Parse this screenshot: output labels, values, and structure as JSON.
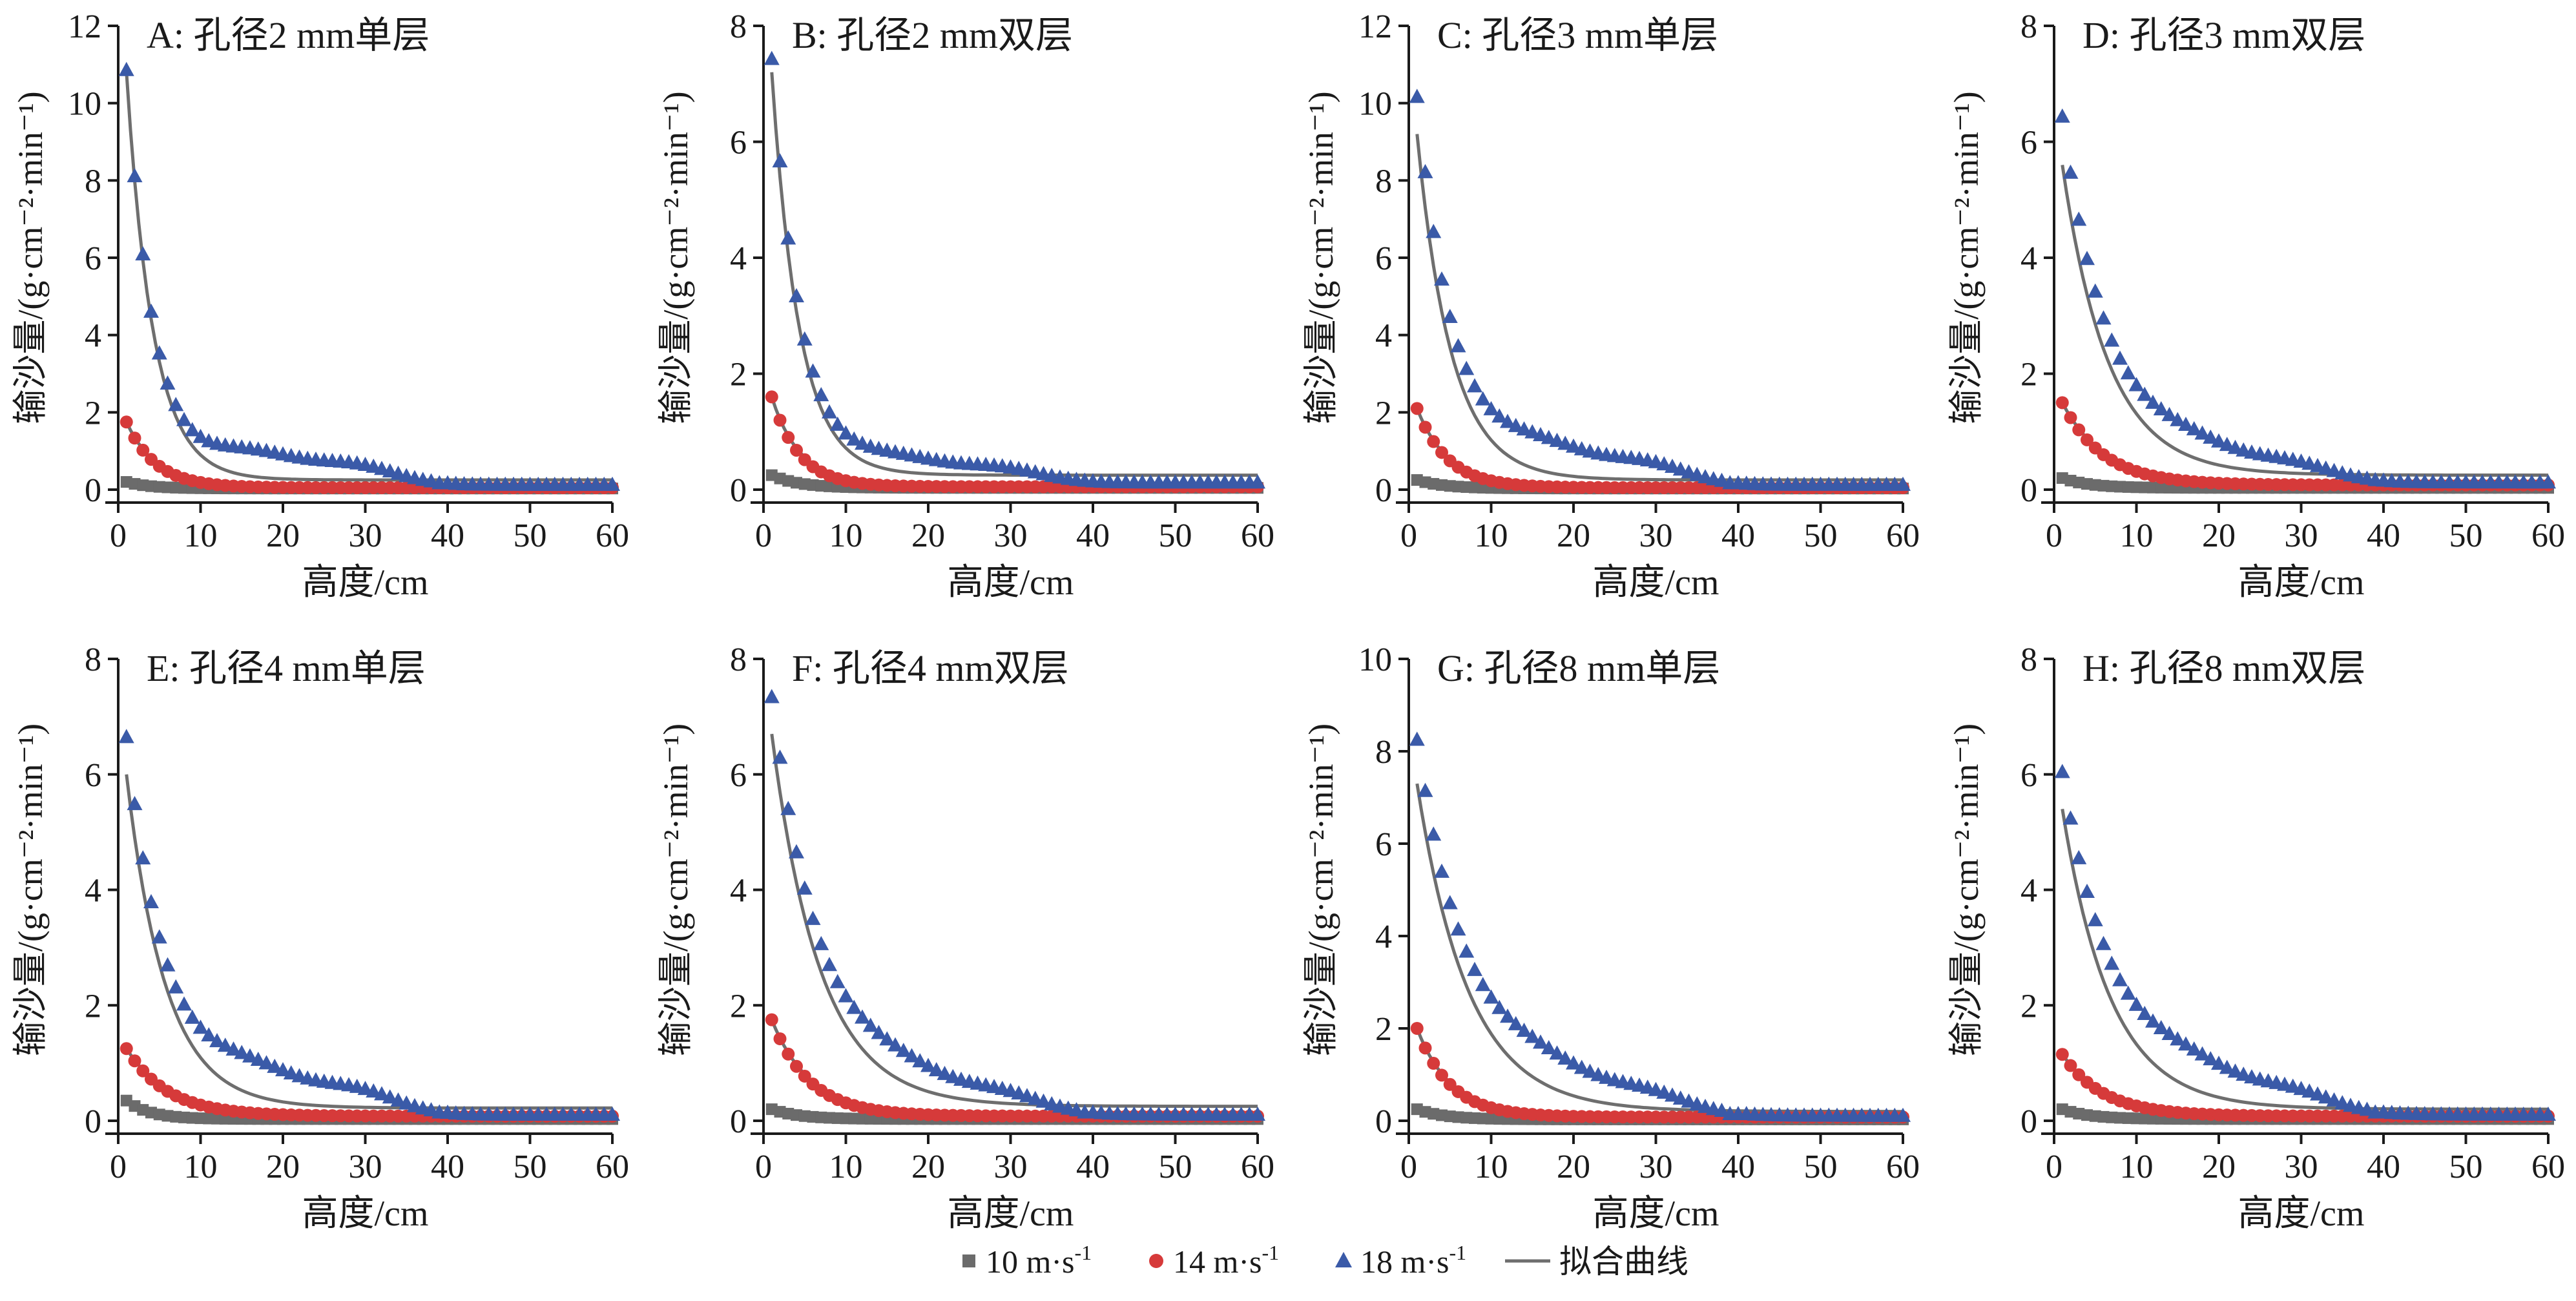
{
  "legend": {
    "items": [
      {
        "label": "10 m·s",
        "sup": "-1",
        "marker": "square",
        "color": "#6b6b6b"
      },
      {
        "label": "14 m·s",
        "sup": "-1",
        "marker": "circle",
        "color": "#d63a3a"
      },
      {
        "label": "18 m·s",
        "sup": "-1",
        "marker": "triangle",
        "color": "#3a5aa8"
      },
      {
        "label": "拟合曲线",
        "sup": "",
        "marker": "line",
        "color": "#6e6e6e"
      }
    ],
    "placement": "bottom-center"
  },
  "chart_data": [
    {
      "type": "scatter",
      "panel": "A",
      "title": "A: 孔径2 mm单层",
      "xlabel": "高度/cm",
      "ylabel": "输沙量/(g·cm⁻²·min⁻¹)",
      "xlim": [
        0,
        60
      ],
      "ylim": [
        0,
        12
      ],
      "xticks": [
        0,
        10,
        20,
        30,
        40,
        50,
        60
      ],
      "yticks": [
        0,
        2,
        4,
        6,
        8,
        10,
        12
      ],
      "series": [
        {
          "name": "10 m·s-1",
          "peak": 0.2,
          "decay": 0.35,
          "tail": 0.03
        },
        {
          "name": "14 m·s-1",
          "peak": 1.75,
          "decay": 0.28,
          "tail": 0.05
        },
        {
          "name": "18 m·s-1",
          "peak": 10.8,
          "decay": 0.3,
          "tail": 0.12,
          "bump": 0.9
        }
      ],
      "fit": {
        "peak": 10.8,
        "decay": 0.31,
        "tail": 0.25
      }
    },
    {
      "type": "scatter",
      "panel": "B",
      "title": "B: 孔径2 mm双层",
      "xlabel": "高度/cm",
      "ylabel": "输沙量/(g·cm⁻²·min⁻¹)",
      "xlim": [
        0,
        60
      ],
      "ylim": [
        0,
        8
      ],
      "xticks": [
        0,
        10,
        20,
        30,
        40,
        50,
        60
      ],
      "yticks": [
        0,
        2,
        4,
        6,
        8
      ],
      "series": [
        {
          "name": "10 m·s-1",
          "peak": 0.25,
          "decay": 0.3,
          "tail": 0.03
        },
        {
          "name": "14 m·s-1",
          "peak": 1.6,
          "decay": 0.3,
          "tail": 0.05
        },
        {
          "name": "18 m·s-1",
          "peak": 7.4,
          "decay": 0.28,
          "tail": 0.12,
          "bump": 0.45
        }
      ],
      "fit": {
        "peak": 7.2,
        "decay": 0.3,
        "tail": 0.25
      }
    },
    {
      "type": "scatter",
      "panel": "C",
      "title": "C: 孔径3 mm单层",
      "xlabel": "高度/cm",
      "ylabel": "输沙量/(g·cm⁻²·min⁻¹)",
      "xlim": [
        0,
        60
      ],
      "ylim": [
        0,
        12
      ],
      "xticks": [
        0,
        10,
        20,
        30,
        40,
        50,
        60
      ],
      "yticks": [
        0,
        2,
        4,
        6,
        8,
        10,
        12
      ],
      "series": [
        {
          "name": "10 m·s-1",
          "peak": 0.25,
          "decay": 0.3,
          "tail": 0.03
        },
        {
          "name": "14 m·s-1",
          "peak": 2.1,
          "decay": 0.27,
          "tail": 0.05
        },
        {
          "name": "18 m·s-1",
          "peak": 10.1,
          "decay": 0.22,
          "tail": 0.12,
          "bump": 1.0
        }
      ],
      "fit": {
        "peak": 9.2,
        "decay": 0.24,
        "tail": 0.25
      }
    },
    {
      "type": "scatter",
      "panel": "D",
      "title": "D: 孔径3 mm双层",
      "xlabel": "高度/cm",
      "ylabel": "输沙量/(g·cm⁻²·min⁻¹)",
      "xlim": [
        0,
        60
      ],
      "ylim": [
        0,
        8
      ],
      "xticks": [
        0,
        10,
        20,
        30,
        40,
        50,
        60
      ],
      "yticks": [
        0,
        2,
        4,
        6,
        8
      ],
      "series": [
        {
          "name": "10 m·s-1",
          "peak": 0.2,
          "decay": 0.3,
          "tail": 0.03
        },
        {
          "name": "14 m·s-1",
          "peak": 1.5,
          "decay": 0.2,
          "tail": 0.08
        },
        {
          "name": "18 m·s-1",
          "peak": 6.4,
          "decay": 0.17,
          "tail": 0.12,
          "bump": 0.55
        }
      ],
      "fit": {
        "peak": 5.6,
        "decay": 0.18,
        "tail": 0.25
      }
    },
    {
      "type": "scatter",
      "panel": "E",
      "title": "E: 孔径4 mm单层",
      "xlabel": "高度/cm",
      "ylabel": "输沙量/(g·cm⁻²·min⁻¹)",
      "xlim": [
        0,
        60
      ],
      "ylim": [
        0,
        8
      ],
      "xticks": [
        0,
        10,
        20,
        30,
        40,
        50,
        60
      ],
      "yticks": [
        0,
        2,
        4,
        6,
        8
      ],
      "series": [
        {
          "name": "10 m·s-1",
          "peak": 0.35,
          "decay": 0.35,
          "tail": 0.03
        },
        {
          "name": "14 m·s-1",
          "peak": 1.25,
          "decay": 0.2,
          "tail": 0.08
        },
        {
          "name": "18 m·s-1",
          "peak": 6.6,
          "decay": 0.2,
          "tail": 0.1,
          "bump": 0.75
        }
      ],
      "fit": {
        "peak": 6.0,
        "decay": 0.21,
        "tail": 0.22
      }
    },
    {
      "type": "scatter",
      "panel": "F",
      "title": "F: 孔径4 mm双层",
      "xlabel": "高度/cm",
      "ylabel": "输沙量/(g·cm⁻²·min⁻¹)",
      "xlim": [
        0,
        60
      ],
      "ylim": [
        0,
        8
      ],
      "xticks": [
        0,
        10,
        20,
        30,
        40,
        50,
        60
      ],
      "yticks": [
        0,
        2,
        4,
        6,
        8
      ],
      "series": [
        {
          "name": "10 m·s-1",
          "peak": 0.2,
          "decay": 0.3,
          "tail": 0.03
        },
        {
          "name": "14 m·s-1",
          "peak": 1.75,
          "decay": 0.22,
          "tail": 0.08
        },
        {
          "name": "18 m·s-1",
          "peak": 7.3,
          "decay": 0.16,
          "tail": 0.1,
          "bump": 0.6
        }
      ],
      "fit": {
        "peak": 6.7,
        "decay": 0.17,
        "tail": 0.25
      }
    },
    {
      "type": "scatter",
      "panel": "G",
      "title": "G: 孔径8 mm单层",
      "xlabel": "高度/cm",
      "ylabel": "输沙量/(g·cm⁻²·min⁻¹)",
      "xlim": [
        0,
        60
      ],
      "ylim": [
        0,
        10
      ],
      "xticks": [
        0,
        10,
        20,
        30,
        40,
        50,
        60
      ],
      "yticks": [
        0,
        2,
        4,
        6,
        8,
        10
      ],
      "series": [
        {
          "name": "10 m·s-1",
          "peak": 0.25,
          "decay": 0.3,
          "tail": 0.03
        },
        {
          "name": "14 m·s-1",
          "peak": 2.0,
          "decay": 0.25,
          "tail": 0.08
        },
        {
          "name": "18 m·s-1",
          "peak": 8.2,
          "decay": 0.15,
          "tail": 0.1,
          "bump": 0.8
        }
      ],
      "fit": {
        "peak": 7.3,
        "decay": 0.16,
        "tail": 0.2
      }
    },
    {
      "type": "scatter",
      "panel": "H",
      "title": "H: 孔径8 mm双层",
      "xlabel": "高度/cm",
      "ylabel": "输沙量/(g·cm⁻²·min⁻¹)",
      "xlim": [
        0,
        60
      ],
      "ylim": [
        0,
        8
      ],
      "xticks": [
        0,
        10,
        20,
        30,
        40,
        50,
        60
      ],
      "yticks": [
        0,
        2,
        4,
        6,
        8
      ],
      "series": [
        {
          "name": "10 m·s-1",
          "peak": 0.2,
          "decay": 0.3,
          "tail": 0.03
        },
        {
          "name": "14 m·s-1",
          "peak": 1.15,
          "decay": 0.2,
          "tail": 0.08
        },
        {
          "name": "18 m·s-1",
          "peak": 6.0,
          "decay": 0.15,
          "tail": 0.1,
          "bump": 0.65
        }
      ],
      "fit": {
        "peak": 5.4,
        "decay": 0.17,
        "tail": 0.2
      }
    }
  ]
}
